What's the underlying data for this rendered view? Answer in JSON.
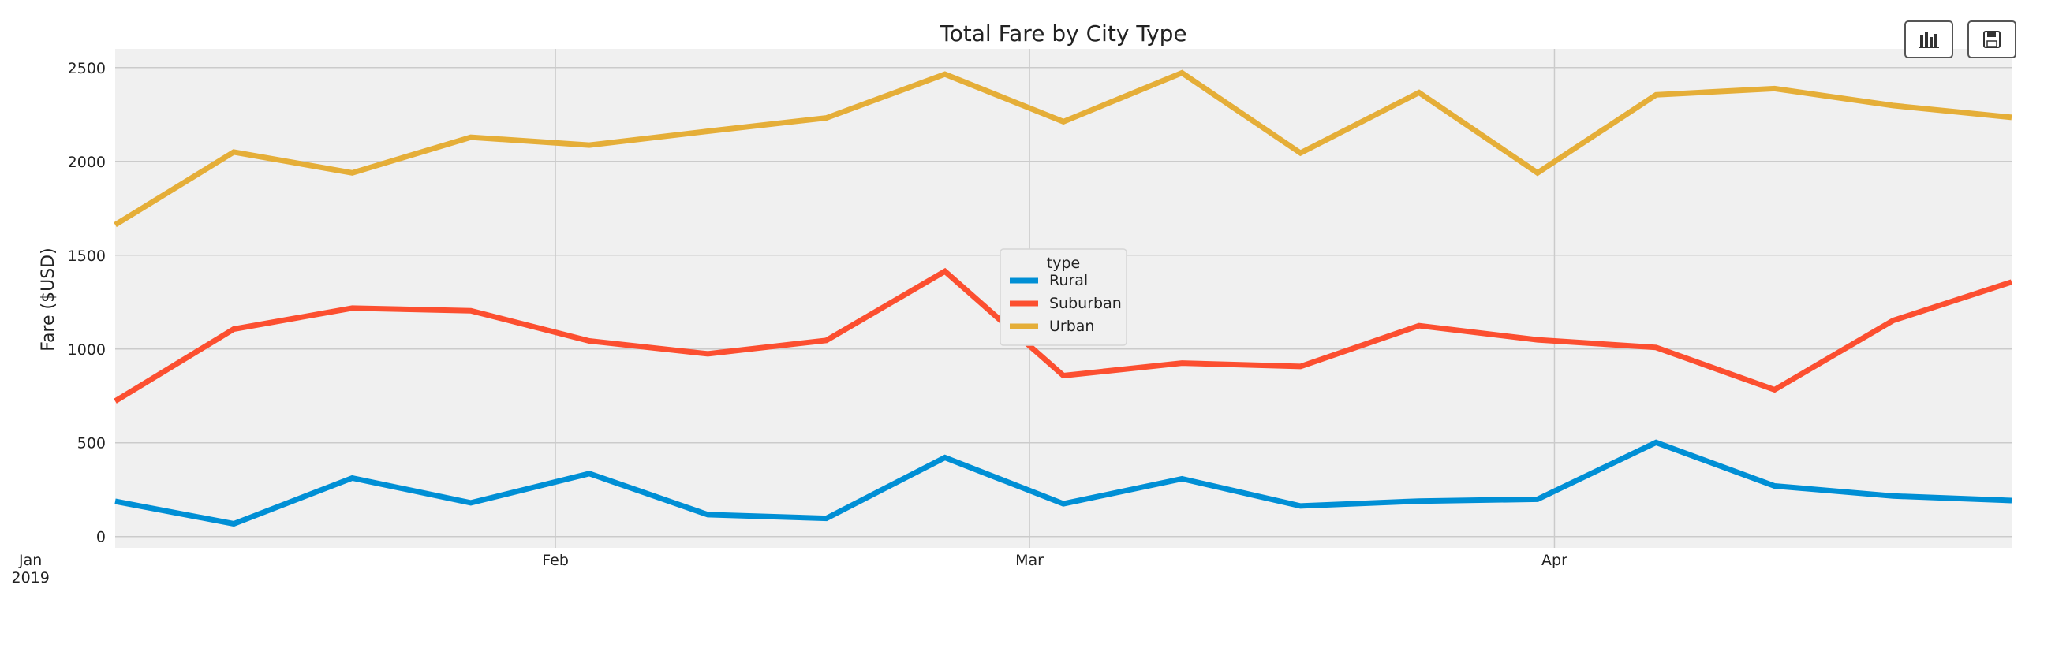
{
  "toolbar": {
    "chart_icon": "bar-chart-icon",
    "save_icon": "floppy-disk-icon"
  },
  "colors": {
    "background": "#f0f0f0",
    "grid": "#cbcbcb",
    "Rural": "#008fd5",
    "Suburban": "#fc4f30",
    "Urban": "#e5ae38"
  },
  "chart_data": {
    "type": "line",
    "title": "Total Fare by City Type",
    "xlabel": "",
    "ylabel": "Fare ($USD)",
    "x": [
      "2019-01-06",
      "2019-01-13",
      "2019-01-20",
      "2019-01-27",
      "2019-02-03",
      "2019-02-10",
      "2019-02-17",
      "2019-02-24",
      "2019-03-03",
      "2019-03-10",
      "2019-03-17",
      "2019-03-24",
      "2019-03-31",
      "2019-04-07",
      "2019-04-14",
      "2019-04-21",
      "2019-04-28"
    ],
    "xlim": [
      "2019-01-06",
      "2019-04-28"
    ],
    "xticks": [
      {
        "date": "2019-01-01",
        "label": "Jan",
        "sublabel": "2019"
      },
      {
        "date": "2019-02-01",
        "label": "Feb",
        "sublabel": ""
      },
      {
        "date": "2019-03-01",
        "label": "Mar",
        "sublabel": ""
      },
      {
        "date": "2019-04-01",
        "label": "Apr",
        "sublabel": ""
      }
    ],
    "ylim": [
      -60,
      2600
    ],
    "yticks": [
      0,
      500,
      1000,
      1500,
      2000,
      2500
    ],
    "grid": true,
    "legend": {
      "title": "type",
      "placement": "center"
    },
    "series": [
      {
        "name": "Rural",
        "values": [
          188,
          68,
          312,
          180,
          336,
          117,
          97,
          421,
          175,
          308,
          163,
          189,
          199,
          502,
          270,
          216,
          192
        ]
      },
      {
        "name": "Suburban",
        "values": [
          722,
          1106,
          1218,
          1204,
          1043,
          974,
          1046,
          1414,
          858,
          925,
          907,
          1124,
          1049,
          1008,
          783,
          1152,
          1357
        ]
      },
      {
        "name": "Urban",
        "values": [
          1662,
          2050,
          1939,
          2129,
          2087,
          2161,
          2232,
          2465,
          2212,
          2472,
          2045,
          2367,
          1939,
          2355,
          2388,
          2298,
          2235
        ]
      }
    ]
  }
}
